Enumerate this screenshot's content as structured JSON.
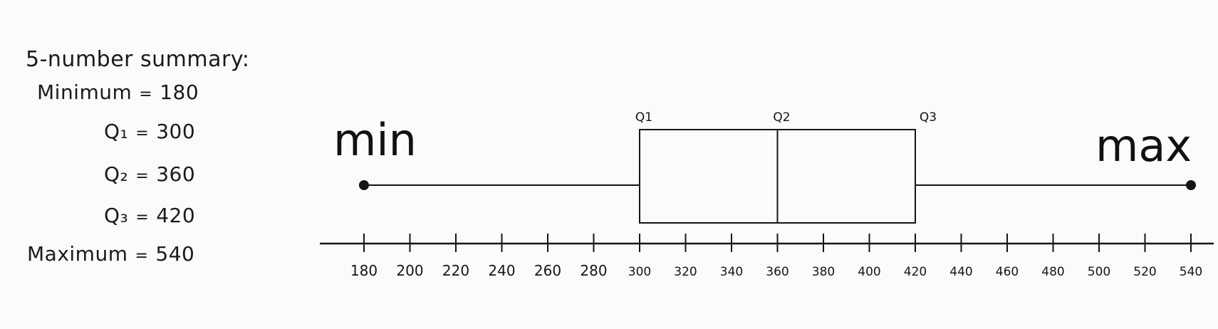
{
  "summary": {
    "title": "5-number summary:",
    "rows": [
      {
        "label": "Minimum",
        "value": "180"
      },
      {
        "label": "Q₁",
        "value": "300"
      },
      {
        "label": "Q₂",
        "value": "360"
      },
      {
        "label": "Q₃",
        "value": "420"
      },
      {
        "label": "Maximum",
        "value": "540"
      }
    ]
  },
  "chart_data": {
    "type": "boxplot",
    "min": 180,
    "q1": 300,
    "median": 360,
    "q3": 420,
    "max": 540,
    "xlim": [
      180,
      540
    ],
    "ticks": [
      180,
      200,
      220,
      240,
      260,
      280,
      300,
      320,
      340,
      360,
      380,
      400,
      420,
      440,
      460,
      480,
      500,
      520,
      540
    ],
    "tick_labels": [
      "180",
      "200",
      "220",
      "240",
      "260",
      "280",
      "300",
      "320",
      "340",
      "360",
      "380",
      "400",
      "420",
      "440",
      "460",
      "480",
      "500",
      "520",
      "540"
    ],
    "box_labels": {
      "q1": "Q1",
      "q2": "Q2",
      "q3": "Q3"
    },
    "end_labels": {
      "min": "min",
      "max": "max"
    },
    "grid": false
  },
  "colors": {
    "ink": "#151515",
    "background": "#fbfbfb"
  }
}
